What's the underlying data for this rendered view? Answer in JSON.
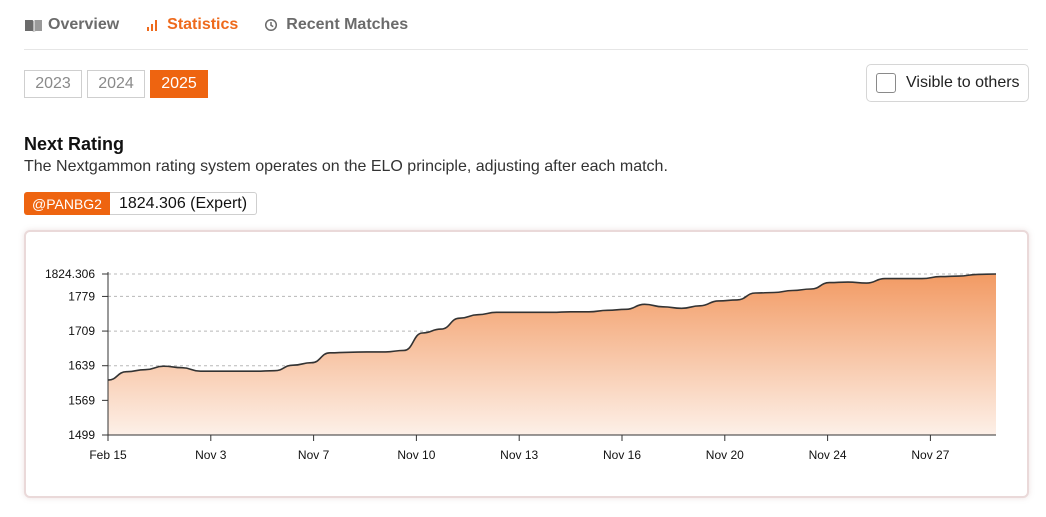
{
  "tabs": [
    {
      "label": "Overview",
      "icon": "book-icon",
      "active": false
    },
    {
      "label": "Statistics",
      "icon": "bar-chart-icon",
      "active": true
    },
    {
      "label": "Recent Matches",
      "icon": "history-icon",
      "active": false
    }
  ],
  "years": [
    {
      "label": "2023",
      "active": false
    },
    {
      "label": "2024",
      "active": false
    },
    {
      "label": "2025",
      "active": true
    }
  ],
  "visibility": {
    "label": "Visible to others",
    "checked": false
  },
  "section": {
    "title": "Next Rating",
    "description": "The Nextgammon rating system operates on the ELO principle, adjusting after each match."
  },
  "badge": {
    "user": "@PANBG2",
    "value": "1824.306 (Expert)"
  },
  "colors": {
    "accent": "#ee6410",
    "line": "#333333",
    "area_top": "#f29a63",
    "area_bottom": "#fdf0e8"
  },
  "chart_data": {
    "type": "area",
    "x_tick_labels": [
      "Feb 15",
      "Nov 3",
      "Nov 7",
      "Nov 10",
      "Nov 13",
      "Nov 16",
      "Nov 20",
      "Nov 24",
      "Nov 27"
    ],
    "y_tick_labels": [
      "1824.306",
      "1779",
      "1709",
      "1639",
      "1569",
      "1499"
    ],
    "ylim": [
      1499,
      1824.306
    ],
    "grid": "horizontal dashed",
    "series": [
      {
        "values": [
          1610,
          1627,
          1631,
          1638,
          1635,
          1628,
          1628,
          1628,
          1628,
          1629,
          1640,
          1645,
          1665,
          1666,
          1667,
          1667,
          1670,
          1705,
          1713,
          1735,
          1742,
          1747,
          1747,
          1747,
          1747,
          1748,
          1748,
          1751,
          1753,
          1763,
          1758,
          1755,
          1760,
          1770,
          1772,
          1786,
          1787,
          1791,
          1794,
          1807,
          1808,
          1806,
          1815,
          1815,
          1815,
          1819,
          1820,
          1823.5,
          1824.306
        ]
      }
    ]
  }
}
